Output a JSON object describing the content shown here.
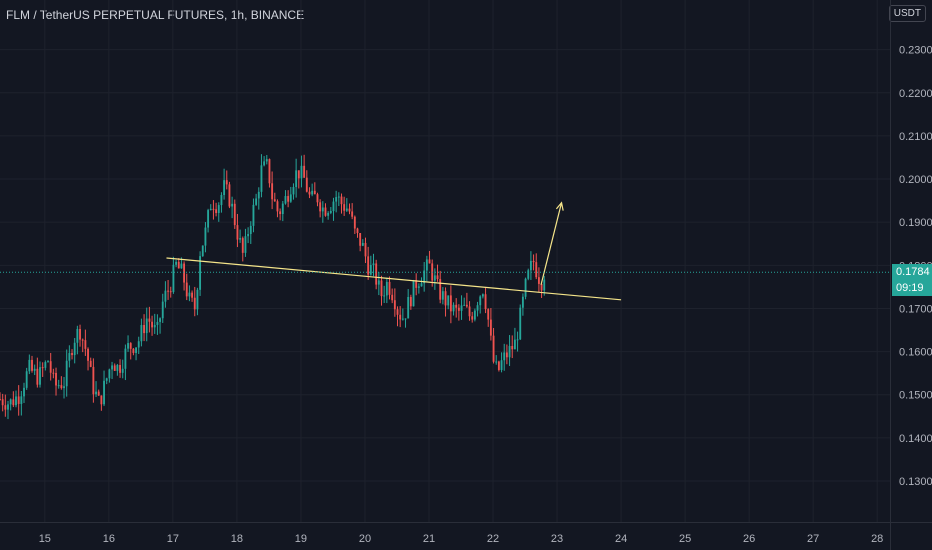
{
  "header": {
    "title": "FLM / TetherUS PERPETUAL FUTURES, 1h, BINANCE",
    "currency": "USDT"
  },
  "price_tags": {
    "last_price": "0.1784",
    "countdown": "09:19"
  },
  "colors": {
    "background": "#131722",
    "up": "#26a69a",
    "down": "#ef5350",
    "annotation": "#f5e58a",
    "grid": "#1e222d"
  },
  "chart_data": {
    "type": "candlestick",
    "x_ticks": [
      "15",
      "16",
      "17",
      "18",
      "19",
      "20",
      "21",
      "22",
      "23",
      "24",
      "25",
      "26",
      "27",
      "28"
    ],
    "y_ticks": [
      "0.2300",
      "0.2200",
      "0.2100",
      "0.2000",
      "0.1900",
      "0.1800",
      "0.1700",
      "0.1600",
      "0.1500",
      "0.1400",
      "0.1300"
    ],
    "ylim": [
      0.1205,
      0.2415
    ],
    "xlim": [
      14.3,
      28.2
    ],
    "last_price": 0.1784,
    "anchors": [
      [
        14.3,
        0.149
      ],
      [
        14.45,
        0.148
      ],
      [
        14.6,
        0.15
      ],
      [
        14.75,
        0.156
      ],
      [
        14.9,
        0.154
      ],
      [
        15.05,
        0.158
      ],
      [
        15.15,
        0.152
      ],
      [
        15.3,
        0.153
      ],
      [
        15.45,
        0.163
      ],
      [
        15.55,
        0.165
      ],
      [
        15.65,
        0.16
      ],
      [
        15.75,
        0.152
      ],
      [
        15.85,
        0.148
      ],
      [
        15.95,
        0.153
      ],
      [
        16.05,
        0.158
      ],
      [
        16.15,
        0.156
      ],
      [
        16.3,
        0.161
      ],
      [
        16.45,
        0.162
      ],
      [
        16.6,
        0.168
      ],
      [
        16.75,
        0.164
      ],
      [
        16.85,
        0.172
      ],
      [
        16.95,
        0.175
      ],
      [
        17.05,
        0.18
      ],
      [
        17.15,
        0.178
      ],
      [
        17.25,
        0.172
      ],
      [
        17.35,
        0.17
      ],
      [
        17.42,
        0.183
      ],
      [
        17.5,
        0.187
      ],
      [
        17.6,
        0.195
      ],
      [
        17.7,
        0.194
      ],
      [
        17.8,
        0.198
      ],
      [
        17.9,
        0.195
      ],
      [
        18.0,
        0.188
      ],
      [
        18.1,
        0.182
      ],
      [
        18.2,
        0.19
      ],
      [
        18.3,
        0.195
      ],
      [
        18.38,
        0.202
      ],
      [
        18.48,
        0.203
      ],
      [
        18.55,
        0.196
      ],
      [
        18.65,
        0.192
      ],
      [
        18.75,
        0.195
      ],
      [
        18.85,
        0.199
      ],
      [
        18.95,
        0.202
      ],
      [
        19.05,
        0.2
      ],
      [
        19.15,
        0.195
      ],
      [
        19.25,
        0.196
      ],
      [
        19.35,
        0.193
      ],
      [
        19.45,
        0.194
      ],
      [
        19.55,
        0.196
      ],
      [
        19.65,
        0.194
      ],
      [
        19.75,
        0.193
      ],
      [
        19.85,
        0.187
      ],
      [
        19.95,
        0.185
      ],
      [
        20.05,
        0.18
      ],
      [
        20.15,
        0.178
      ],
      [
        20.25,
        0.173
      ],
      [
        20.35,
        0.176
      ],
      [
        20.45,
        0.173
      ],
      [
        20.52,
        0.169
      ],
      [
        20.6,
        0.168
      ],
      [
        20.7,
        0.172
      ],
      [
        20.8,
        0.176
      ],
      [
        20.9,
        0.178
      ],
      [
        21.0,
        0.18
      ],
      [
        21.08,
        0.177
      ],
      [
        21.15,
        0.174
      ],
      [
        21.25,
        0.172
      ],
      [
        21.35,
        0.17
      ],
      [
        21.45,
        0.169
      ],
      [
        21.55,
        0.17
      ],
      [
        21.65,
        0.168
      ],
      [
        21.75,
        0.172
      ],
      [
        21.85,
        0.175
      ],
      [
        21.92,
        0.168
      ],
      [
        22.0,
        0.158
      ],
      [
        22.07,
        0.155
      ],
      [
        22.15,
        0.158
      ],
      [
        22.25,
        0.16
      ],
      [
        22.35,
        0.162
      ],
      [
        22.45,
        0.17
      ],
      [
        22.52,
        0.176
      ],
      [
        22.58,
        0.179
      ],
      [
        22.63,
        0.181
      ],
      [
        22.7,
        0.178
      ],
      [
        22.75,
        0.176
      ],
      [
        22.8,
        0.1784
      ]
    ],
    "annotations": {
      "trendline": {
        "from": [
          16.9,
          0.1817
        ],
        "to": [
          24.0,
          0.172
        ]
      },
      "arrow": {
        "from": [
          22.75,
          0.1755
        ],
        "to": [
          23.07,
          0.1945
        ]
      }
    }
  }
}
